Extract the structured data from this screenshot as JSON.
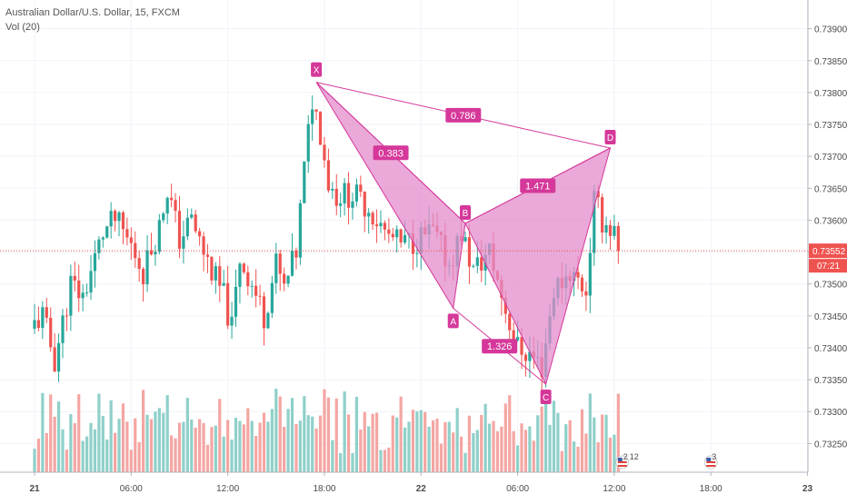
{
  "header": {
    "symbol_line": "Australian Dollar/U.S. Dollar, 15, FXCM",
    "indicator_line": "Vol (20)"
  },
  "chart_data": {
    "type": "candlestick",
    "price_axis": {
      "ylim": [
        0.73205,
        0.73945
      ],
      "ticks": [
        "0.73900",
        "0.73850",
        "0.73800",
        "0.73750",
        "0.73700",
        "0.73650",
        "0.73600",
        "0.73550",
        "0.73500",
        "0.73450",
        "0.73400",
        "0.73350",
        "0.73300",
        "0.73250"
      ],
      "tick_values": [
        0.739,
        0.7385,
        0.738,
        0.7375,
        0.737,
        0.7365,
        0.736,
        0.7355,
        0.735,
        0.7345,
        0.734,
        0.7335,
        0.733,
        0.7325
      ]
    },
    "time_axis": {
      "labels": [
        "21",
        "06:00",
        "12:00",
        "18:00",
        "22",
        "06:00",
        "12:00",
        "18:00",
        "23"
      ],
      "bar_index": [
        0,
        24,
        48,
        72,
        96,
        120,
        144,
        168,
        192
      ]
    },
    "bars_shown": 146,
    "last_price": "0.73552",
    "last_price_value": 0.73552,
    "countdown": "07:21",
    "grid": true,
    "colors": {
      "up": "#26a69a",
      "down": "#ef5350",
      "vol_up": "#8fd0c9",
      "vol_down": "#f4a6a3",
      "pattern": "#d5389a",
      "pattern_fill": "#e38ccb",
      "price_line": "#ef5350",
      "grid": "#f0f3f8"
    },
    "pattern": {
      "name": "harmonic XABCD",
      "points": [
        {
          "label": "X",
          "bar": 70,
          "price": 0.73816
        },
        {
          "label": "A",
          "bar": 104,
          "price": 0.73462
        },
        {
          "label": "B",
          "bar": 107,
          "price": 0.73595
        },
        {
          "label": "C",
          "bar": 127,
          "price": 0.73343
        },
        {
          "label": "D",
          "bar": 143,
          "price": 0.73713
        }
      ],
      "ratios": [
        {
          "label": "0.383",
          "from": "X",
          "to": "B"
        },
        {
          "label": "1.326",
          "from": "A",
          "to": "C"
        },
        {
          "label": "1.471",
          "from": "B",
          "to": "D"
        },
        {
          "label": "0.786",
          "from": "X",
          "to": "D"
        }
      ]
    },
    "events": [
      {
        "count": "2",
        "extra": "12",
        "bar": 146,
        "flag": "us-flag-icon"
      },
      {
        "count": "3",
        "bar": 168,
        "flag": "us-flag-icon"
      }
    ]
  }
}
